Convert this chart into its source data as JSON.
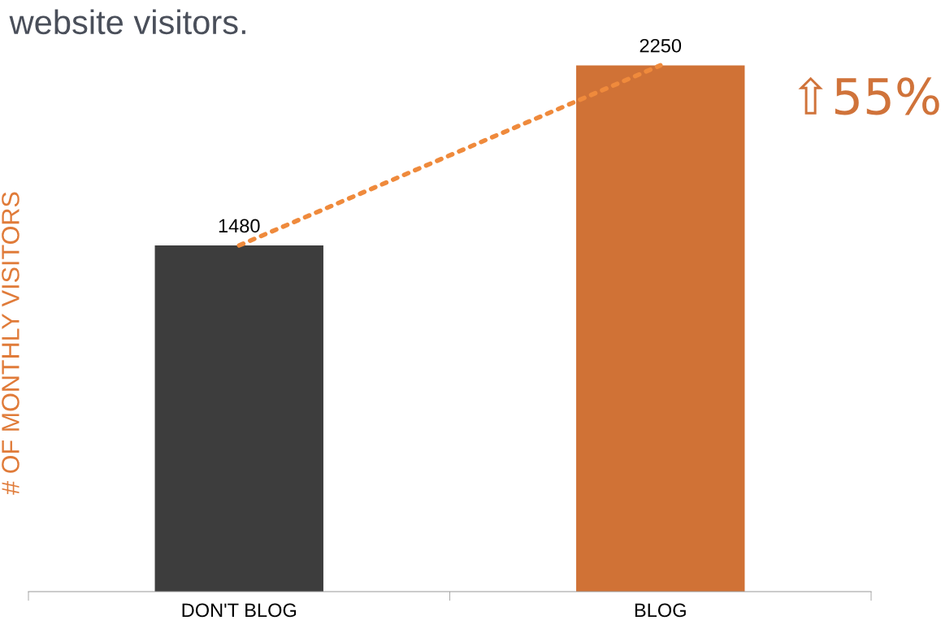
{
  "chart_data": {
    "type": "bar",
    "title": "website visitors.",
    "ylabel": "# OF MONTHLY VISITORS",
    "categories": [
      "DON'T BLOG",
      "BLOG"
    ],
    "series": [
      {
        "colors": [
          "#3d3d3d",
          "#d07236"
        ],
        "values": [
          1480,
          2250
        ],
        "value_labels": [
          "1480",
          "2250"
        ]
      },
      {
        "type": "line",
        "color": "#ef8a3c",
        "line_style": "dotted",
        "values": [
          1480,
          2250
        ]
      }
    ],
    "grid": false,
    "legend": false,
    "tick_labels": "x",
    "annotations": [
      {
        "text": "⇧55%",
        "x": "BLOG",
        "y": 2250
      }
    ]
  }
}
